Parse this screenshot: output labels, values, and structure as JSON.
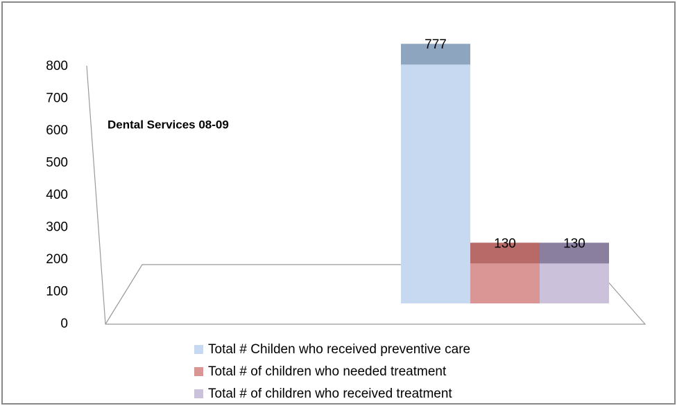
{
  "chart_data": {
    "type": "bar3d",
    "title": "Dental Services 08-09",
    "categories": [
      null
    ],
    "series": [
      {
        "name": "Total # Childen who received preventive care",
        "color": "#c6d9f1",
        "top_color": "#8ea5c0",
        "values": [
          777
        ]
      },
      {
        "name": "Total # of children who needed treatment",
        "color": "#d99694",
        "top_color": "#b86a68",
        "values": [
          130
        ]
      },
      {
        "name": "Total # of children who received treatment",
        "color": "#ccc1da",
        "top_color": "#8b7fa0",
        "values": [
          130
        ]
      }
    ],
    "ylim": [
      0,
      800
    ],
    "yticks": [
      0,
      100,
      200,
      300,
      400,
      500,
      600,
      700,
      800
    ],
    "legend": "bottom"
  }
}
